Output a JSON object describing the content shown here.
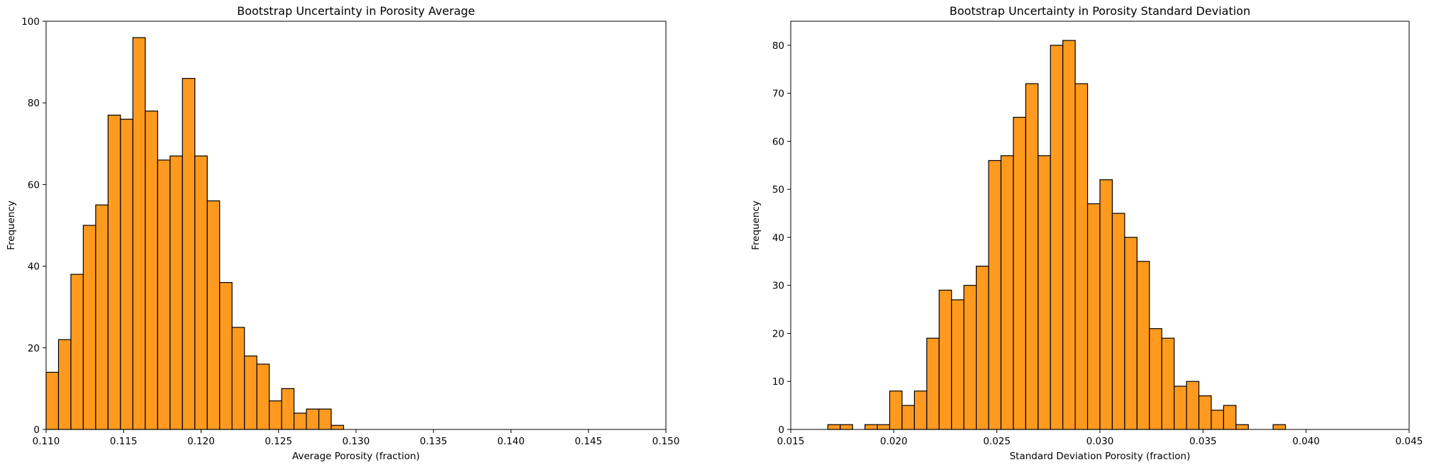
{
  "chart_data": [
    {
      "type": "bar",
      "title": "Bootstrap Uncertainty in Porosity Average",
      "xlabel": "Average Porosity (fraction)",
      "ylabel": "Frequency",
      "xlim": [
        0.11,
        0.15
      ],
      "ylim": [
        0,
        100
      ],
      "xticks": [
        "0.110",
        "0.115",
        "0.120",
        "0.125",
        "0.130",
        "0.135",
        "0.140",
        "0.145",
        "0.150"
      ],
      "yticks": [
        "0",
        "20",
        "40",
        "60",
        "80",
        "100"
      ],
      "grid": false,
      "bar_color": "#ff9a1f",
      "edge_color": "#000000",
      "bin_start": 0.11,
      "bin_width": 0.0008,
      "values": [
        14,
        22,
        38,
        50,
        55,
        77,
        76,
        96,
        78,
        66,
        67,
        86,
        67,
        56,
        36,
        25,
        18,
        16,
        7,
        10,
        4,
        5,
        5,
        1
      ]
    },
    {
      "type": "bar",
      "title": "Bootstrap Uncertainty in Porosity Standard Deviation",
      "xlabel": "Standard Deviation Porosity (fraction)",
      "ylabel": "Frequency",
      "xlim": [
        0.015,
        0.045
      ],
      "ylim": [
        0,
        85
      ],
      "xticks": [
        "0.015",
        "0.020",
        "0.025",
        "0.030",
        "0.035",
        "0.040",
        "0.045"
      ],
      "yticks": [
        "0",
        "10",
        "20",
        "30",
        "40",
        "50",
        "60",
        "70",
        "80"
      ],
      "grid": false,
      "bar_color": "#ff9a1f",
      "edge_color": "#000000",
      "bin_start": 0.0168,
      "bin_width": 0.0006,
      "values": [
        1,
        1,
        0,
        1,
        1,
        8,
        5,
        8,
        19,
        29,
        27,
        30,
        34,
        56,
        57,
        65,
        72,
        57,
        80,
        81,
        72,
        47,
        52,
        45,
        40,
        35,
        21,
        19,
        9,
        10,
        7,
        4,
        5,
        1,
        0,
        0,
        1
      ]
    }
  ]
}
